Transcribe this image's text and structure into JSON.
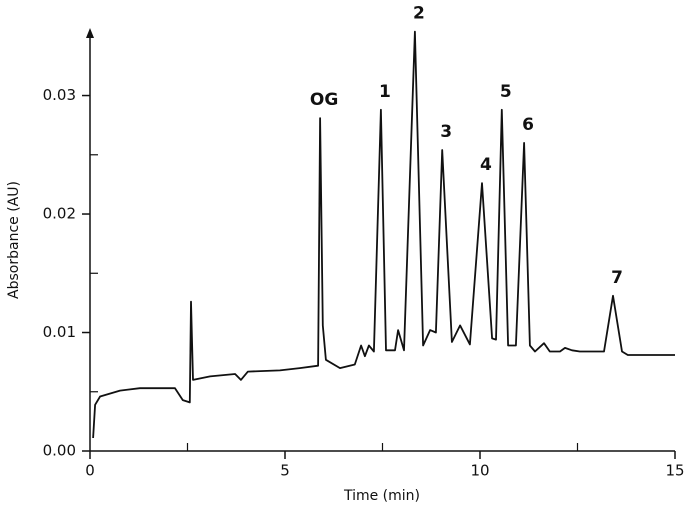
{
  "chart_data": {
    "type": "line",
    "color": "#111111",
    "xlabel": "Time (min)",
    "ylabel": "Absorbance (AU)",
    "xlim": [
      0,
      15
    ],
    "ylim": [
      0,
      0.0357
    ],
    "xticks": [
      0,
      5,
      10,
      15
    ],
    "xminorticks": [
      2.5,
      7.5,
      12.5
    ],
    "yticks": [
      {
        "value": 0,
        "label": "0.00"
      },
      0.01,
      0.02,
      0.03
    ],
    "yminorticks": [
      0.005,
      0.015,
      0.025
    ],
    "x": [
      0.08,
      0.13,
      0.26,
      0.77,
      1.28,
      2.18,
      2.38,
      2.56,
      2.59,
      2.64,
      3.08,
      3.72,
      3.87,
      4.05,
      4.87,
      5.38,
      5.85,
      5.9,
      5.97,
      6.05,
      6.41,
      6.79,
      6.95,
      7.05,
      7.15,
      7.28,
      7.46,
      7.59,
      7.82,
      7.9,
      8.05,
      8.33,
      8.54,
      8.72,
      8.87,
      9.03,
      9.28,
      9.49,
      9.74,
      10.05,
      10.31,
      10.41,
      10.56,
      10.72,
      10.92,
      11.13,
      11.28,
      11.41,
      11.64,
      11.79,
      12.05,
      12.18,
      12.36,
      12.56,
      13.18,
      13.41,
      13.64,
      13.79,
      15.0
    ],
    "values": [
      0.0011,
      0.0039,
      0.0046,
      0.0051,
      0.0053,
      0.0053,
      0.0043,
      0.0041,
      0.0126,
      0.006,
      0.0063,
      0.0065,
      0.006,
      0.0067,
      0.0068,
      0.007,
      0.0072,
      0.0281,
      0.0106,
      0.0077,
      0.007,
      0.0073,
      0.0089,
      0.008,
      0.0089,
      0.0084,
      0.0288,
      0.0085,
      0.0085,
      0.0102,
      0.0085,
      0.0354,
      0.0089,
      0.0102,
      0.01,
      0.0254,
      0.0092,
      0.0106,
      0.009,
      0.0226,
      0.0095,
      0.0094,
      0.0288,
      0.0089,
      0.0089,
      0.026,
      0.0089,
      0.0084,
      0.0091,
      0.0084,
      0.0084,
      0.0087,
      0.0085,
      0.0084,
      0.0084,
      0.0131,
      0.0084,
      0.0081,
      0.0081
    ],
    "annotations": [
      {
        "text": "OG",
        "x": 5.9,
        "y": 0.0281
      },
      {
        "text": "1",
        "x": 7.46,
        "y": 0.0288
      },
      {
        "text": "2",
        "x": 8.33,
        "y": 0.0354
      },
      {
        "text": "3",
        "x": 9.03,
        "y": 0.0254
      },
      {
        "text": "4",
        "x": 10.05,
        "y": 0.0226
      },
      {
        "text": "5",
        "x": 10.56,
        "y": 0.0288
      },
      {
        "text": "6",
        "x": 11.13,
        "y": 0.026
      },
      {
        "text": "7",
        "x": 13.41,
        "y": 0.0131
      }
    ]
  }
}
